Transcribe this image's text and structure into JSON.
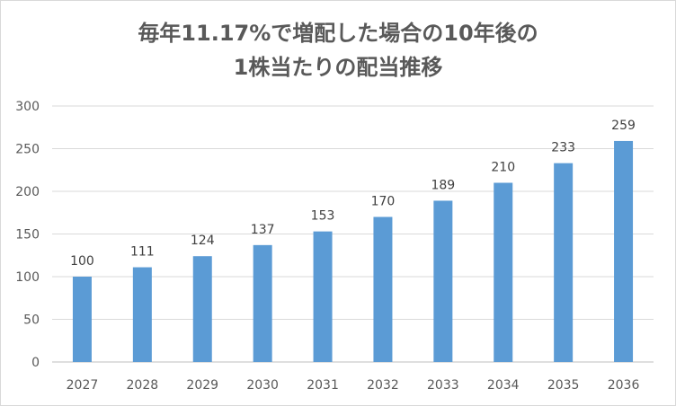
{
  "chart_data": {
    "type": "bar",
    "title_line1": "毎年11.17%で増配した場合の10年後の",
    "title_line2": "1株当たりの配当推移",
    "categories": [
      "2027",
      "2028",
      "2029",
      "2030",
      "2031",
      "2032",
      "2033",
      "2034",
      "2035",
      "2036"
    ],
    "values": [
      100,
      111,
      124,
      137,
      153,
      170,
      189,
      210,
      233,
      259
    ],
    "data_labels": [
      "100",
      "111",
      "124",
      "137",
      "153",
      "170",
      "189",
      "210",
      "233",
      "259"
    ],
    "ylim": [
      0,
      300
    ],
    "yticks": [
      "0",
      "50",
      "100",
      "150",
      "200",
      "250",
      "300"
    ],
    "grid": true,
    "legend": "none",
    "bar_color": "#5b9bd5"
  }
}
